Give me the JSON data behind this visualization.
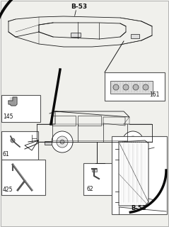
{
  "background_color": "#f0f0ec",
  "line_color": "#1a1a1a",
  "text_color": "#111111",
  "label_B53_top": "B-53",
  "label_B53_bottom": "B-53",
  "label_145": "145",
  "label_161": "161",
  "label_61": "61",
  "label_425": "425",
  "label_62": "62",
  "fig_width": 2.39,
  "fig_height": 3.2,
  "dpi": 100
}
